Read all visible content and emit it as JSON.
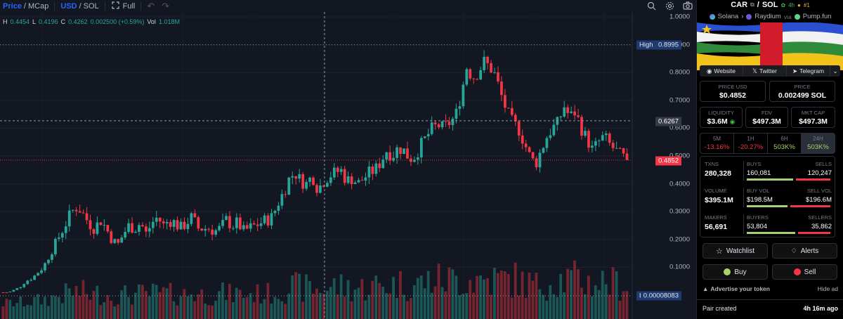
{
  "toolbar": {
    "price_label": "Price",
    "sep1": "/",
    "mcap_label": "MCap",
    "usd_label": "USD",
    "sep2": "/",
    "sol_label": "SOL",
    "full_label": "Full"
  },
  "ohlc": {
    "h_label": "H",
    "h": "0.4454",
    "l_label": "L",
    "l": "0.4196",
    "c_label": "C",
    "c": "0.4262",
    "change": "0.002500 (+0.59%)",
    "vol_label": "Vol",
    "vol": "1.018M"
  },
  "axis": {
    "ticks": [
      "1.0000",
      "0.9000",
      "0.8000",
      "0.7000",
      "0.6000",
      "0.5000",
      "0.4000",
      "0.3000",
      "0.2000",
      "0.1000"
    ],
    "high_label": "High",
    "high_value": "0.8995",
    "low_label": "Low",
    "low_value": "0.00008083",
    "crosshair_value": "0.6267",
    "last_price": "0.4852"
  },
  "chart_data": {
    "type": "candlestick",
    "ylim": [
      0,
      1.0
    ],
    "high": 0.8995,
    "low": 8.083e-05,
    "last": 0.4852,
    "crosshair": 0.6267,
    "close_path": [
      0.01,
      0.01,
      0.02,
      0.03,
      0.05,
      0.06,
      0.08,
      0.1,
      0.14,
      0.18,
      0.22,
      0.26,
      0.3,
      0.32,
      0.29,
      0.26,
      0.24,
      0.27,
      0.24,
      0.2,
      0.18,
      0.22,
      0.25,
      0.24,
      0.26,
      0.22,
      0.26,
      0.28,
      0.25,
      0.27,
      0.26,
      0.24,
      0.26,
      0.28,
      0.24,
      0.24,
      0.24,
      0.23,
      0.24,
      0.27,
      0.25,
      0.26,
      0.23,
      0.24,
      0.25,
      0.26,
      0.27,
      0.28,
      0.33,
      0.37,
      0.42,
      0.44,
      0.41,
      0.4,
      0.43,
      0.38,
      0.41,
      0.43,
      0.44,
      0.45,
      0.41,
      0.42,
      0.4,
      0.42,
      0.44,
      0.45,
      0.48,
      0.52,
      0.5,
      0.53,
      0.52,
      0.49,
      0.5,
      0.54,
      0.57,
      0.6,
      0.61,
      0.6,
      0.62,
      0.64,
      0.72,
      0.82,
      0.78,
      0.8,
      0.84,
      0.82,
      0.79,
      0.72,
      0.66,
      0.62,
      0.6,
      0.55,
      0.5,
      0.47,
      0.52,
      0.57,
      0.6,
      0.62,
      0.68,
      0.64,
      0.66,
      0.6,
      0.56,
      0.52,
      0.55,
      0.57,
      0.54,
      0.52,
      0.5,
      0.4852
    ]
  },
  "pair": {
    "base": "CAR",
    "sep": "/",
    "quote": "SOL",
    "age": "4h",
    "rank": "#1",
    "chain": "Solana",
    "dex": "Raydium",
    "via": "via",
    "launchpad": "Pump.fun"
  },
  "links": {
    "website": "Website",
    "twitter": "Twitter",
    "telegram": "Telegram"
  },
  "prices": {
    "usd_label": "PRICE USD",
    "usd": "$0.4852",
    "native_label": "PRICE",
    "native": "0.002499 SOL"
  },
  "metrics": {
    "liq_label": "LIQUIDITY",
    "liq": "$3.6M",
    "fdv_label": "FDV",
    "fdv": "$497.3M",
    "mcap_label": "MKT CAP",
    "mcap": "$497.3M"
  },
  "timeframes": [
    {
      "label": "5M",
      "change": "-13.16%",
      "dir": "neg"
    },
    {
      "label": "1H",
      "change": "-20.27%",
      "dir": "neg"
    },
    {
      "label": "6H",
      "change": "503K%",
      "dir": "pos"
    },
    {
      "label": "24H",
      "change": "503K%",
      "dir": "pos"
    }
  ],
  "stats": {
    "txns_label": "TXNS",
    "txns": "280,328",
    "buys_label": "BUYS",
    "buys": "160,081",
    "sells_label": "SELLS",
    "sells": "120,247",
    "volume_label": "VOLUME",
    "volume": "$395.1M",
    "buyvol_label": "BUY VOL",
    "buyvol": "$198.5M",
    "sellvol_label": "SELL VOL",
    "sellvol": "$196.6M",
    "makers_label": "MAKERS",
    "makers": "56,691",
    "buyers_label": "BUYERS",
    "buyers": "53,804",
    "sellers_label": "SELLERS",
    "sellers": "35,862",
    "buy_ratio_txns": 0.57,
    "buy_ratio_vol": 0.5,
    "buy_ratio_makers": 0.6
  },
  "actions": {
    "watchlist": "Watchlist",
    "alerts": "Alerts",
    "buy": "Buy",
    "sell": "Sell",
    "advertise": "Advertise your token",
    "hide_ad": "Hide ad"
  },
  "created": {
    "label": "Pair created",
    "age": "4h 16m ago"
  },
  "colors": {
    "up": "#26a69a",
    "down": "#f23645",
    "accent": "#2962ff"
  }
}
